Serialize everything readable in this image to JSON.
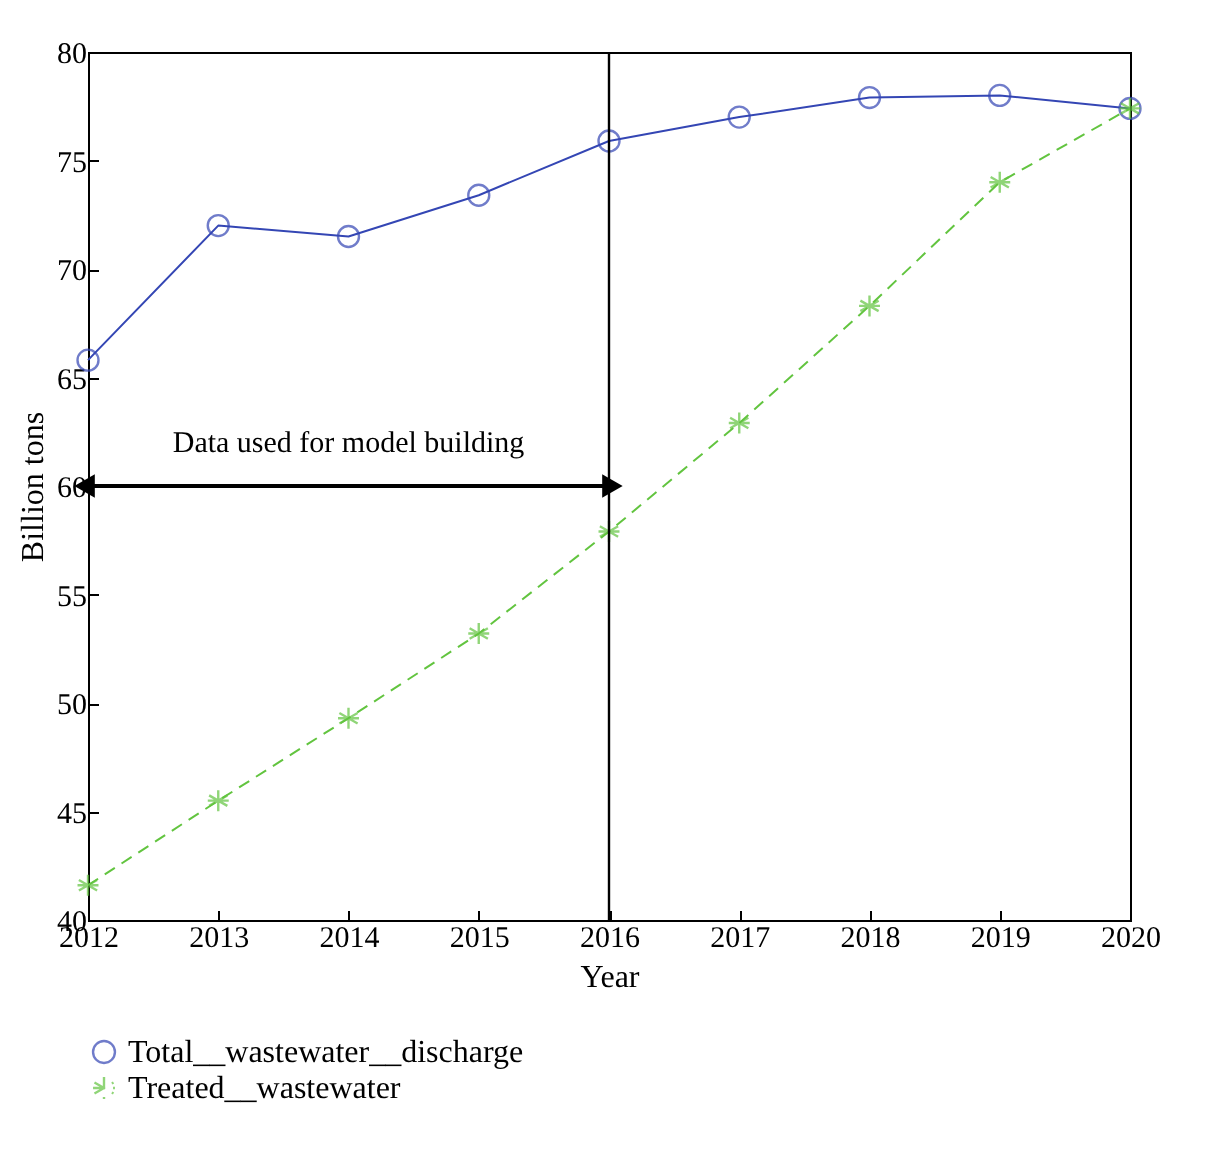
{
  "chart_data": {
    "type": "line",
    "xlabel": "Year",
    "ylabel": "Billion tons",
    "x": [
      2012,
      2013,
      2014,
      2015,
      2016,
      2017,
      2018,
      2019,
      2020
    ],
    "series": [
      {
        "name": "Total__wastewater__discharge",
        "color": "#3446b4",
        "marker": "circle",
        "line_style": "solid",
        "values": [
          65.8,
          72.0,
          71.5,
          73.4,
          75.9,
          77.0,
          77.9,
          78.0,
          77.4
        ]
      },
      {
        "name": "Treated__wastewater",
        "color": "#62c43f",
        "marker": "cross",
        "line_style": "dashed",
        "values": [
          41.6,
          45.5,
          49.3,
          53.2,
          57.9,
          62.9,
          68.3,
          74.0,
          77.4
        ]
      }
    ],
    "xlim": [
      2012,
      2020
    ],
    "xticks": [
      2012,
      2013,
      2014,
      2015,
      2016,
      2017,
      2018,
      2019,
      2020
    ],
    "ylim": [
      40,
      80
    ],
    "yticks": [
      40,
      45,
      50,
      55,
      60,
      65,
      70,
      75,
      80
    ],
    "grid": false,
    "legend": "bottom left",
    "ref_lines": [
      {
        "axis": "x",
        "value": 2016,
        "color": "#000000"
      }
    ],
    "annotations": [
      "Data used for model building"
    ]
  }
}
